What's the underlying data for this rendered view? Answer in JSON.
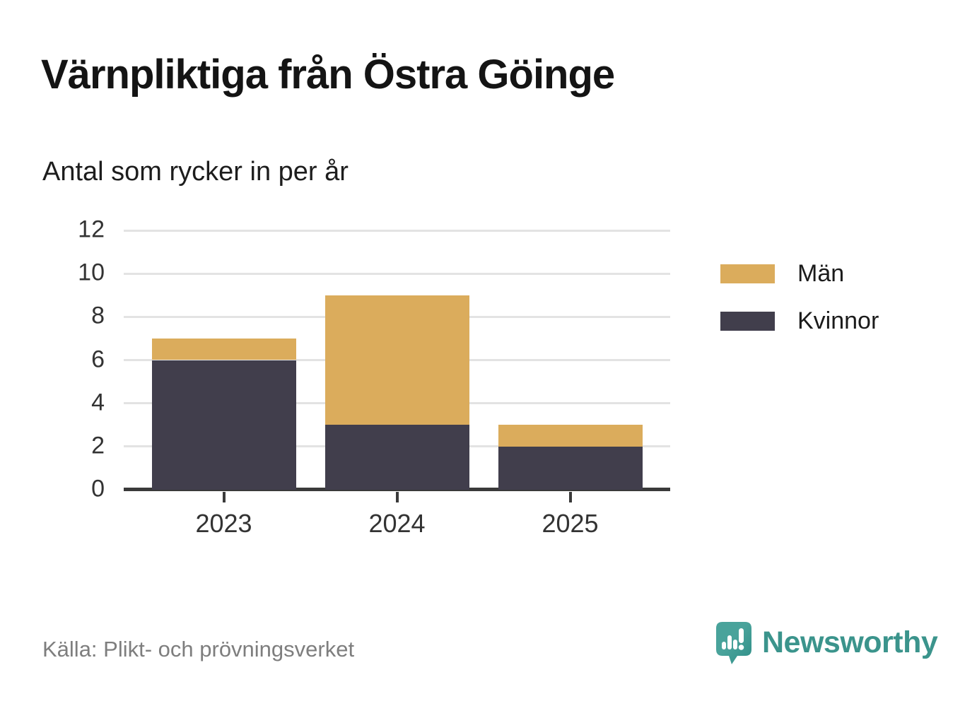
{
  "title": "Värnpliktiga från Östra Göinge",
  "subtitle": "Antal som rycker in per år",
  "source": "Källa: Plikt- och prövningsverket",
  "brand": {
    "name": "Newsworthy",
    "color": "#3b948c"
  },
  "colors": {
    "men": "#dbac5c",
    "women": "#413e4c",
    "grid": "#e3e3e3",
    "axis": "#3a3a3a",
    "tick_text": "#333333",
    "muted_text": "#7e7e7e"
  },
  "legend": [
    {
      "label": "Män",
      "color": "#dbac5c"
    },
    {
      "label": "Kvinnor",
      "color": "#413e4c"
    }
  ],
  "chart_data": {
    "type": "bar",
    "stacked": true,
    "title": "Värnpliktiga från Östra Göinge",
    "subtitle": "Antal som rycker in per år",
    "categories": [
      "2023",
      "2024",
      "2025"
    ],
    "series": [
      {
        "name": "Kvinnor",
        "values": [
          6,
          3,
          2
        ],
        "color": "#413e4c"
      },
      {
        "name": "Män",
        "values": [
          1,
          6,
          1
        ],
        "color": "#dbac5c"
      }
    ],
    "totals": [
      7,
      9,
      3
    ],
    "xlabel": "",
    "ylabel": "",
    "ylim": [
      0,
      12
    ],
    "yticks": [
      0,
      2,
      4,
      6,
      8,
      10,
      12
    ],
    "grid": true,
    "legend_position": "right"
  }
}
